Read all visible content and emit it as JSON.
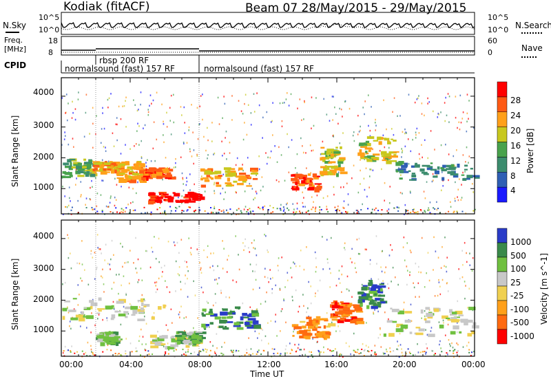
{
  "header": {
    "station": "Kodiak (fitACF)",
    "beam_dates": "Beam 07 28/May/2015 - 29/May/2015"
  },
  "noise_panel": {
    "left_label": "N.Sky",
    "right_label": "N.Search",
    "left_ticks": [
      "10^5",
      "10^0"
    ],
    "right_ticks": [
      "10^5",
      "10^0"
    ]
  },
  "freq_panel": {
    "left_label_1": "Freq.",
    "left_label_2": "[MHz]",
    "right_label": "Nave",
    "left_ticks": [
      "18",
      "8"
    ],
    "right_ticks": [
      "60",
      "0"
    ]
  },
  "cpid": {
    "label": "CPID",
    "segments": [
      {
        "start": 0,
        "end": 8,
        "text": "normalsound (fast) 157 RF"
      },
      {
        "start": 2,
        "end": 8,
        "text": "rbsp 200 RF"
      },
      {
        "start": 8,
        "end": 24,
        "text": "normalsound (fast) 157 RF"
      }
    ]
  },
  "chart_data": [
    {
      "type": "heatmap",
      "name": "Power",
      "ylabel": "Slant Range [km]",
      "ylim": [
        180,
        4600
      ],
      "yticks": [
        "1000",
        "2000",
        "3000",
        "4000"
      ],
      "xlim": [
        0,
        24
      ],
      "colorbar": {
        "label": "Power [dB]",
        "ticks": [
          "4",
          "8",
          "12",
          "16",
          "20",
          "24",
          "28"
        ],
        "colors": [
          "#1a1aff",
          "#2f5fb4",
          "#3c8c6e",
          "#49a24c",
          "#c8c81e",
          "#ffa01a",
          "#ff5a14",
          "#ff0000"
        ]
      },
      "features": [
        {
          "t0": 0.0,
          "t1": 1.8,
          "r0": 1400,
          "r1": 2000,
          "level": 3
        },
        {
          "t0": 1.8,
          "t1": 3.2,
          "r0": 1550,
          "r1": 1900,
          "level": 5
        },
        {
          "t0": 3.2,
          "t1": 4.6,
          "r0": 1300,
          "r1": 1900,
          "level": 5
        },
        {
          "t0": 4.6,
          "t1": 6.2,
          "r0": 1350,
          "r1": 1700,
          "level": 6
        },
        {
          "t0": 5.0,
          "t1": 8.0,
          "r0": 600,
          "r1": 900,
          "level": 7
        },
        {
          "t0": 8.0,
          "t1": 11.2,
          "r0": 1100,
          "r1": 1700,
          "level": 5
        },
        {
          "t0": 13.3,
          "t1": 15.0,
          "r0": 1000,
          "r1": 1500,
          "level": 6
        },
        {
          "t0": 15.0,
          "t1": 16.2,
          "r0": 1500,
          "r1": 2400,
          "level": 4
        },
        {
          "t0": 17.2,
          "t1": 19.3,
          "r0": 1900,
          "r1": 2700,
          "level": 4
        },
        {
          "t0": 19.3,
          "t1": 24.0,
          "r0": 1300,
          "r1": 1900,
          "level": 2
        }
      ]
    },
    {
      "type": "heatmap",
      "name": "Velocity",
      "ylabel": "Slant Range [km]",
      "ylim": [
        180,
        4600
      ],
      "yticks": [
        "1000",
        "2000",
        "3000",
        "4000"
      ],
      "xlabel": "Time UT",
      "xlim": [
        0,
        24
      ],
      "xticks": [
        "00:00",
        "04:00",
        "08:00",
        "12:00",
        "16:00",
        "20:00",
        "00:00"
      ],
      "colorbar": {
        "label": "Velocity [m s^-1]",
        "ticks": [
          "1000",
          "500",
          "100",
          "25",
          "-25",
          "-100",
          "-500",
          "-1000"
        ],
        "colors": [
          "#2a3cc8",
          "#3a8a4a",
          "#70c040",
          "#c8c8c8",
          "#f0d050",
          "#ffa01a",
          "#ff6a10",
          "#ff0000"
        ]
      },
      "features": [
        {
          "t0": 0.0,
          "t1": 6.0,
          "r0": 1400,
          "r1": 2100,
          "level": 3
        },
        {
          "t0": 2.0,
          "t1": 3.2,
          "r0": 600,
          "r1": 1000,
          "level": 2
        },
        {
          "t0": 5.0,
          "t1": 8.0,
          "r0": 500,
          "r1": 900,
          "level": 3
        },
        {
          "t0": 6.6,
          "t1": 8.0,
          "r0": 600,
          "r1": 1000,
          "level": 2
        },
        {
          "t0": 8.0,
          "t1": 11.2,
          "r0": 1100,
          "r1": 1800,
          "level": 1
        },
        {
          "t0": 13.3,
          "t1": 15.6,
          "r0": 800,
          "r1": 1500,
          "level": 5
        },
        {
          "t0": 15.6,
          "t1": 17.2,
          "r0": 1300,
          "r1": 2000,
          "level": 6
        },
        {
          "t0": 17.2,
          "t1": 18.6,
          "r0": 1800,
          "r1": 2700,
          "level": 1
        },
        {
          "t0": 18.6,
          "t1": 24.0,
          "r0": 900,
          "r1": 1800,
          "level": 3
        }
      ]
    }
  ]
}
